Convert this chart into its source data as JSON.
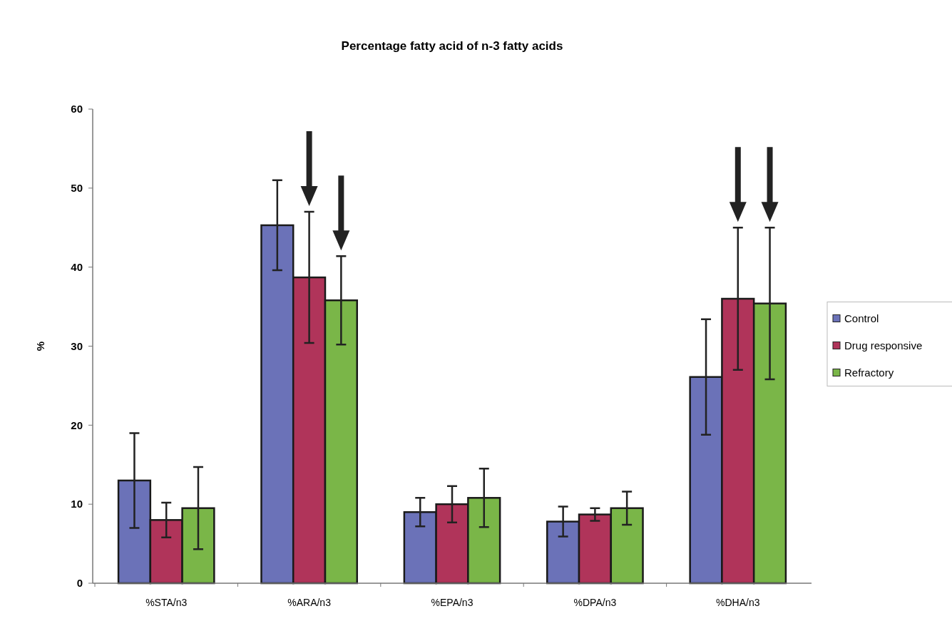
{
  "chart_data": {
    "type": "bar",
    "title": "Percentage fatty acid of n-3 fatty acids",
    "ylabel": "%",
    "categories": [
      "%STA/n3",
      "%ARA/n3",
      "%EPA/n3",
      "%DPA/n3",
      "%DHA/n3"
    ],
    "series": [
      {
        "name": "Control",
        "color": "#6b72b8",
        "values": [
          13,
          45.3,
          9,
          7.8,
          26.1
        ],
        "errors": [
          6,
          5.7,
          1.8,
          1.9,
          7.3
        ]
      },
      {
        "name": "Drug responsive",
        "color": "#b0345a",
        "values": [
          8,
          38.7,
          10,
          8.7,
          36
        ],
        "errors": [
          2.2,
          8.3,
          2.3,
          0.8,
          9
        ]
      },
      {
        "name": "Refractory",
        "color": "#7ab648",
        "values": [
          9.5,
          35.8,
          10.8,
          9.5,
          35.4
        ],
        "errors": [
          5.2,
          5.6,
          3.7,
          2.1,
          9.6
        ]
      }
    ],
    "ylim": [
      0,
      60
    ],
    "yticks": [
      0,
      10,
      20,
      30,
      40,
      50,
      60
    ],
    "grid": false,
    "legend": "right"
  }
}
